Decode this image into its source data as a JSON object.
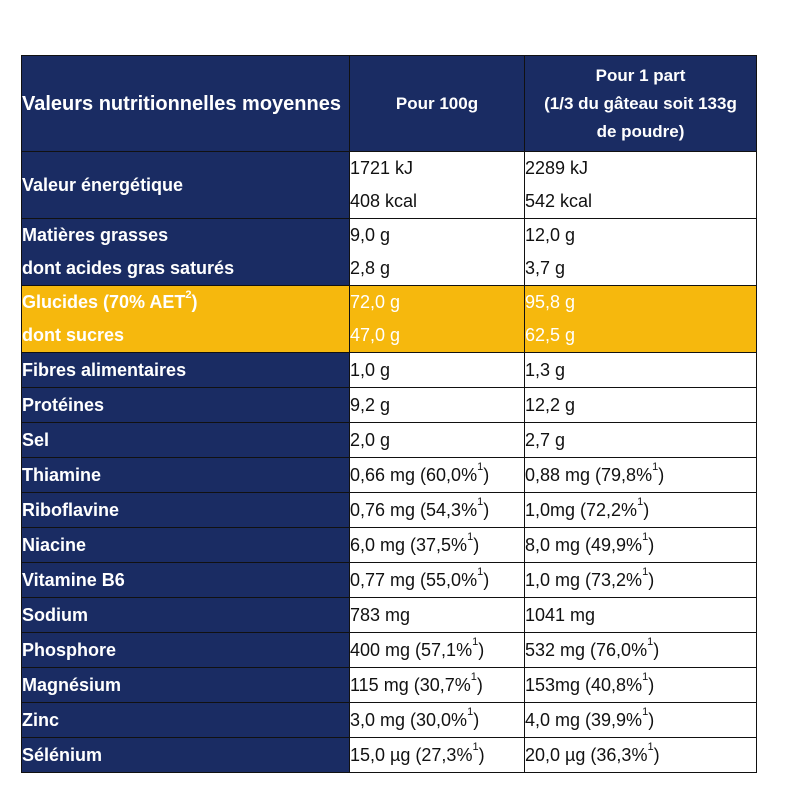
{
  "header": {
    "label": "Valeurs nutritionnelles moyennes",
    "col_100g": "Pour 100g",
    "col_part_line1": "Pour 1 part",
    "col_part_line2": "(1/3 du gâteau soit 133g",
    "col_part_line3": "de poudre)"
  },
  "energy": {
    "label": "Valeur énergétique",
    "v100_kj": "1721 kJ",
    "v100_kcal": "408 kcal",
    "part_kj": "2289 kJ",
    "part_kcal": "542 kcal"
  },
  "fat": {
    "label1": "Matières grasses",
    "label2": "dont acides gras saturés",
    "v100_1": "9,0 g",
    "v100_2": "2,8 g",
    "part_1": "12,0 g",
    "part_2": "3,7 g"
  },
  "carbs": {
    "label1": "Glucides (70% AET",
    "label1_sup": "2",
    "label1_end": ")",
    "label2": "dont sucres",
    "v100_1": "72,0 g",
    "v100_2": "47,0 g",
    "part_1": "95,8 g",
    "part_2": "62,5 g"
  },
  "rows": [
    {
      "label": "Fibres alimentaires",
      "v100": "1,0 g",
      "v100_ref": "",
      "part": "1,3 g",
      "part_ref": ""
    },
    {
      "label": "Protéines",
      "v100": "9,2 g",
      "v100_ref": "",
      "part": "12,2 g",
      "part_ref": ""
    },
    {
      "label": "Sel",
      "v100": "2,0 g",
      "v100_ref": "",
      "part": "2,7 g",
      "part_ref": ""
    },
    {
      "label": "Thiamine",
      "v100": "0,66 mg (60,0%",
      "v100_ref": "1",
      "part": "0,88 mg (79,8%",
      "part_ref": "1"
    },
    {
      "label": "Riboflavine",
      "v100": "0,76 mg (54,3%",
      "v100_ref": "1",
      "part": "1,0mg (72,2%",
      "part_ref": "1"
    },
    {
      "label": "Niacine",
      "v100": "6,0 mg (37,5%",
      "v100_ref": "1",
      "part": "8,0 mg (49,9%",
      "part_ref": "1"
    },
    {
      "label": "Vitamine B6",
      "v100": "0,77 mg (55,0%",
      "v100_ref": "1",
      "part": "1,0 mg (73,2%",
      "part_ref": "1"
    },
    {
      "label": "Sodium",
      "v100": "783 mg",
      "v100_ref": "",
      "part": "1041  mg",
      "part_ref": ""
    },
    {
      "label": "Phosphore",
      "v100": "400 mg (57,1%",
      "v100_ref": "1",
      "part": "532 mg (76,0%",
      "part_ref": "1"
    },
    {
      "label": "Magnésium",
      "v100": "115 mg (30,7%",
      "v100_ref": "1",
      "part": "153mg (40,8%",
      "part_ref": "1"
    },
    {
      "label": "Zinc",
      "v100": "3,0 mg (30,0%",
      "v100_ref": "1",
      "part": "4,0 mg (39,9%",
      "part_ref": "1"
    },
    {
      "label": "Sélénium",
      "v100": "15,0 µg (27,3%",
      "v100_ref": "1",
      "part": "20,0 µg (36,3%",
      "part_ref": "1"
    }
  ]
}
